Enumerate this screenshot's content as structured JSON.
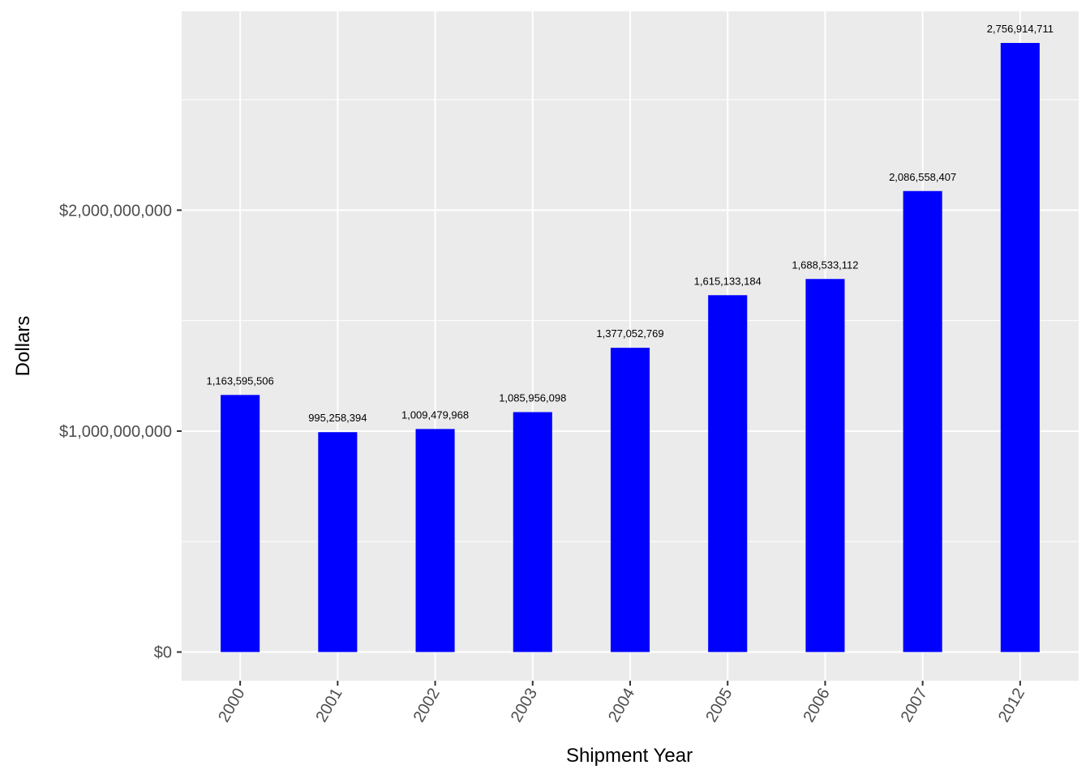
{
  "chart_data": {
    "type": "bar",
    "title": "",
    "xlabel": "Shipment Year",
    "ylabel": "Dollars",
    "categories": [
      "2000",
      "2001",
      "2002",
      "2003",
      "2004",
      "2005",
      "2006",
      "2007",
      "2012"
    ],
    "values": [
      1163595506,
      995258394,
      1009479968,
      1085956098,
      1377052769,
      1615133184,
      1688533112,
      2086558407,
      2756914711
    ],
    "data_labels": [
      "1,163,595,506",
      "995,258,394",
      "1,009,479,968",
      "1,085,956,098",
      "1,377,052,769",
      "1,615,133,184",
      "1,688,533,112",
      "2,086,558,407",
      "2,756,914,711"
    ],
    "y_ticks": [
      0,
      1000000000,
      2000000000
    ],
    "y_tick_labels": [
      "$0",
      "$1,000,000,000",
      "$2,000,000,000"
    ],
    "ylim": [
      -130000000,
      2900000000
    ],
    "grid": true,
    "bar_color": "#0000ff",
    "panel_color": "#ebebeb",
    "grid_color": "#ffffff"
  }
}
